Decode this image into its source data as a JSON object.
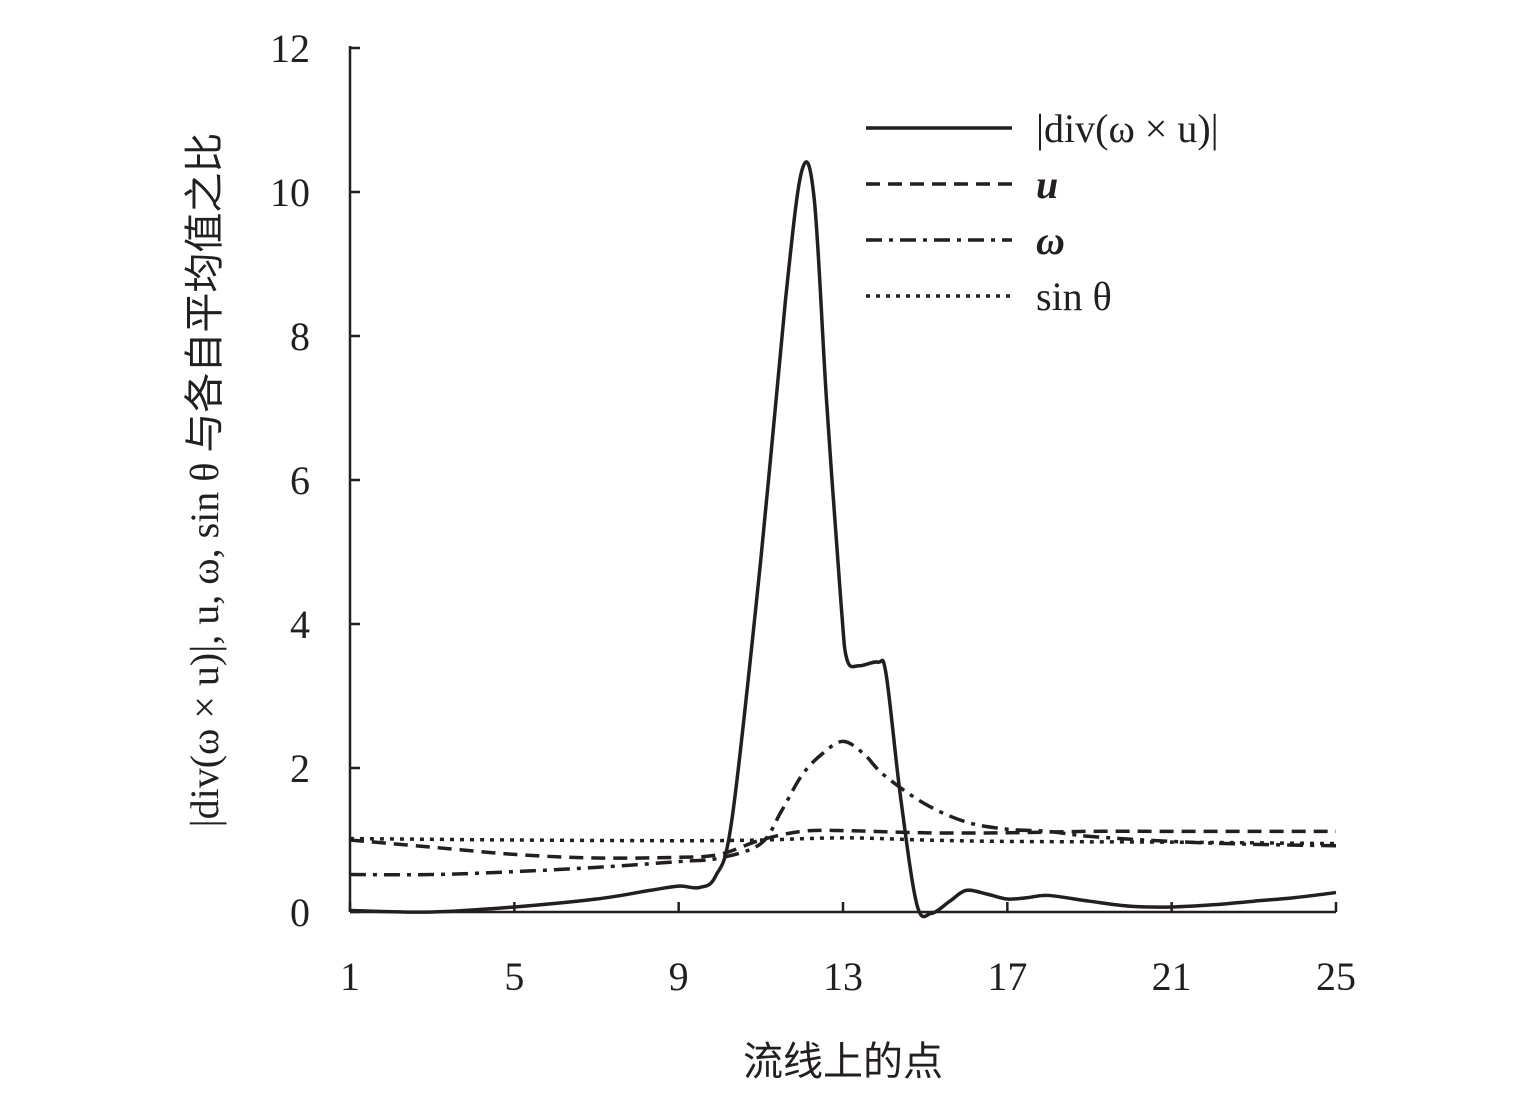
{
  "chart_data": {
    "type": "line",
    "title": "",
    "xlabel": "流线上的点",
    "ylabel": "|div(ω × u)|, u, ω, sin θ 与各自平均值之比",
    "xlim": [
      1,
      25
    ],
    "ylim": [
      0,
      12
    ],
    "xticks": [
      "1",
      "5",
      "9",
      "13",
      "17",
      "21",
      "25"
    ],
    "yticks": [
      "0",
      "2",
      "4",
      "6",
      "8",
      "10",
      "12"
    ],
    "grid": false,
    "legend_position": "top-right",
    "series": [
      {
        "name": "|div(ω × u)|",
        "style": "solid",
        "points": [
          [
            1,
            0.02
          ],
          [
            3,
            0
          ],
          [
            5,
            0.07
          ],
          [
            7,
            0.18
          ],
          [
            8.3,
            0.3
          ],
          [
            9,
            0.36
          ],
          [
            9.5,
            0.34
          ],
          [
            9.9,
            0.5
          ],
          [
            10.3,
            1.3
          ],
          [
            11,
            4.9
          ],
          [
            11.6,
            8.5
          ],
          [
            12,
            10.3
          ],
          [
            12.3,
            9.9
          ],
          [
            12.6,
            7.1
          ],
          [
            12.95,
            4.3
          ],
          [
            13.1,
            3.5
          ],
          [
            13.4,
            3.42
          ],
          [
            13.85,
            3.47
          ],
          [
            14.05,
            3.3
          ],
          [
            14.4,
            1.6
          ],
          [
            14.8,
            0.1
          ],
          [
            15.15,
            -0.02
          ],
          [
            15.6,
            0.15
          ],
          [
            16,
            0.3
          ],
          [
            16.5,
            0.25
          ],
          [
            17,
            0.18
          ],
          [
            17.5,
            0.2
          ],
          [
            18,
            0.23
          ],
          [
            19,
            0.15
          ],
          [
            20,
            0.08
          ],
          [
            21,
            0.07
          ],
          [
            22,
            0.1
          ],
          [
            23,
            0.15
          ],
          [
            24,
            0.2
          ],
          [
            25,
            0.27
          ]
        ]
      },
      {
        "name": "u",
        "style": "dashed",
        "points": [
          [
            1,
            1.0
          ],
          [
            3,
            0.9
          ],
          [
            5,
            0.8
          ],
          [
            7,
            0.75
          ],
          [
            9,
            0.76
          ],
          [
            10,
            0.8
          ],
          [
            11,
            1.0
          ],
          [
            12,
            1.12
          ],
          [
            13,
            1.13
          ],
          [
            15,
            1.1
          ],
          [
            17,
            1.1
          ],
          [
            19,
            1.12
          ],
          [
            21,
            1.12
          ],
          [
            23,
            1.12
          ],
          [
            25,
            1.12
          ]
        ]
      },
      {
        "name": "ω",
        "style": "dash-dot",
        "points": [
          [
            1,
            0.52
          ],
          [
            3,
            0.52
          ],
          [
            5,
            0.56
          ],
          [
            7,
            0.62
          ],
          [
            9,
            0.7
          ],
          [
            10,
            0.75
          ],
          [
            11,
            0.95
          ],
          [
            11.5,
            1.4
          ],
          [
            12,
            1.9
          ],
          [
            12.5,
            2.2
          ],
          [
            13,
            2.37
          ],
          [
            13.5,
            2.2
          ],
          [
            14,
            1.9
          ],
          [
            15,
            1.5
          ],
          [
            16,
            1.25
          ],
          [
            17,
            1.15
          ],
          [
            18,
            1.12
          ],
          [
            19,
            1.05
          ],
          [
            21,
            0.98
          ],
          [
            23,
            0.94
          ],
          [
            25,
            0.92
          ]
        ]
      },
      {
        "name": "sin θ",
        "style": "dotted",
        "points": [
          [
            1,
            1.02
          ],
          [
            5,
            1.0
          ],
          [
            9,
            0.99
          ],
          [
            11,
            1.0
          ],
          [
            13,
            1.03
          ],
          [
            15,
            1.0
          ],
          [
            17,
            0.98
          ],
          [
            21,
            0.97
          ],
          [
            25,
            0.95
          ]
        ]
      }
    ]
  }
}
